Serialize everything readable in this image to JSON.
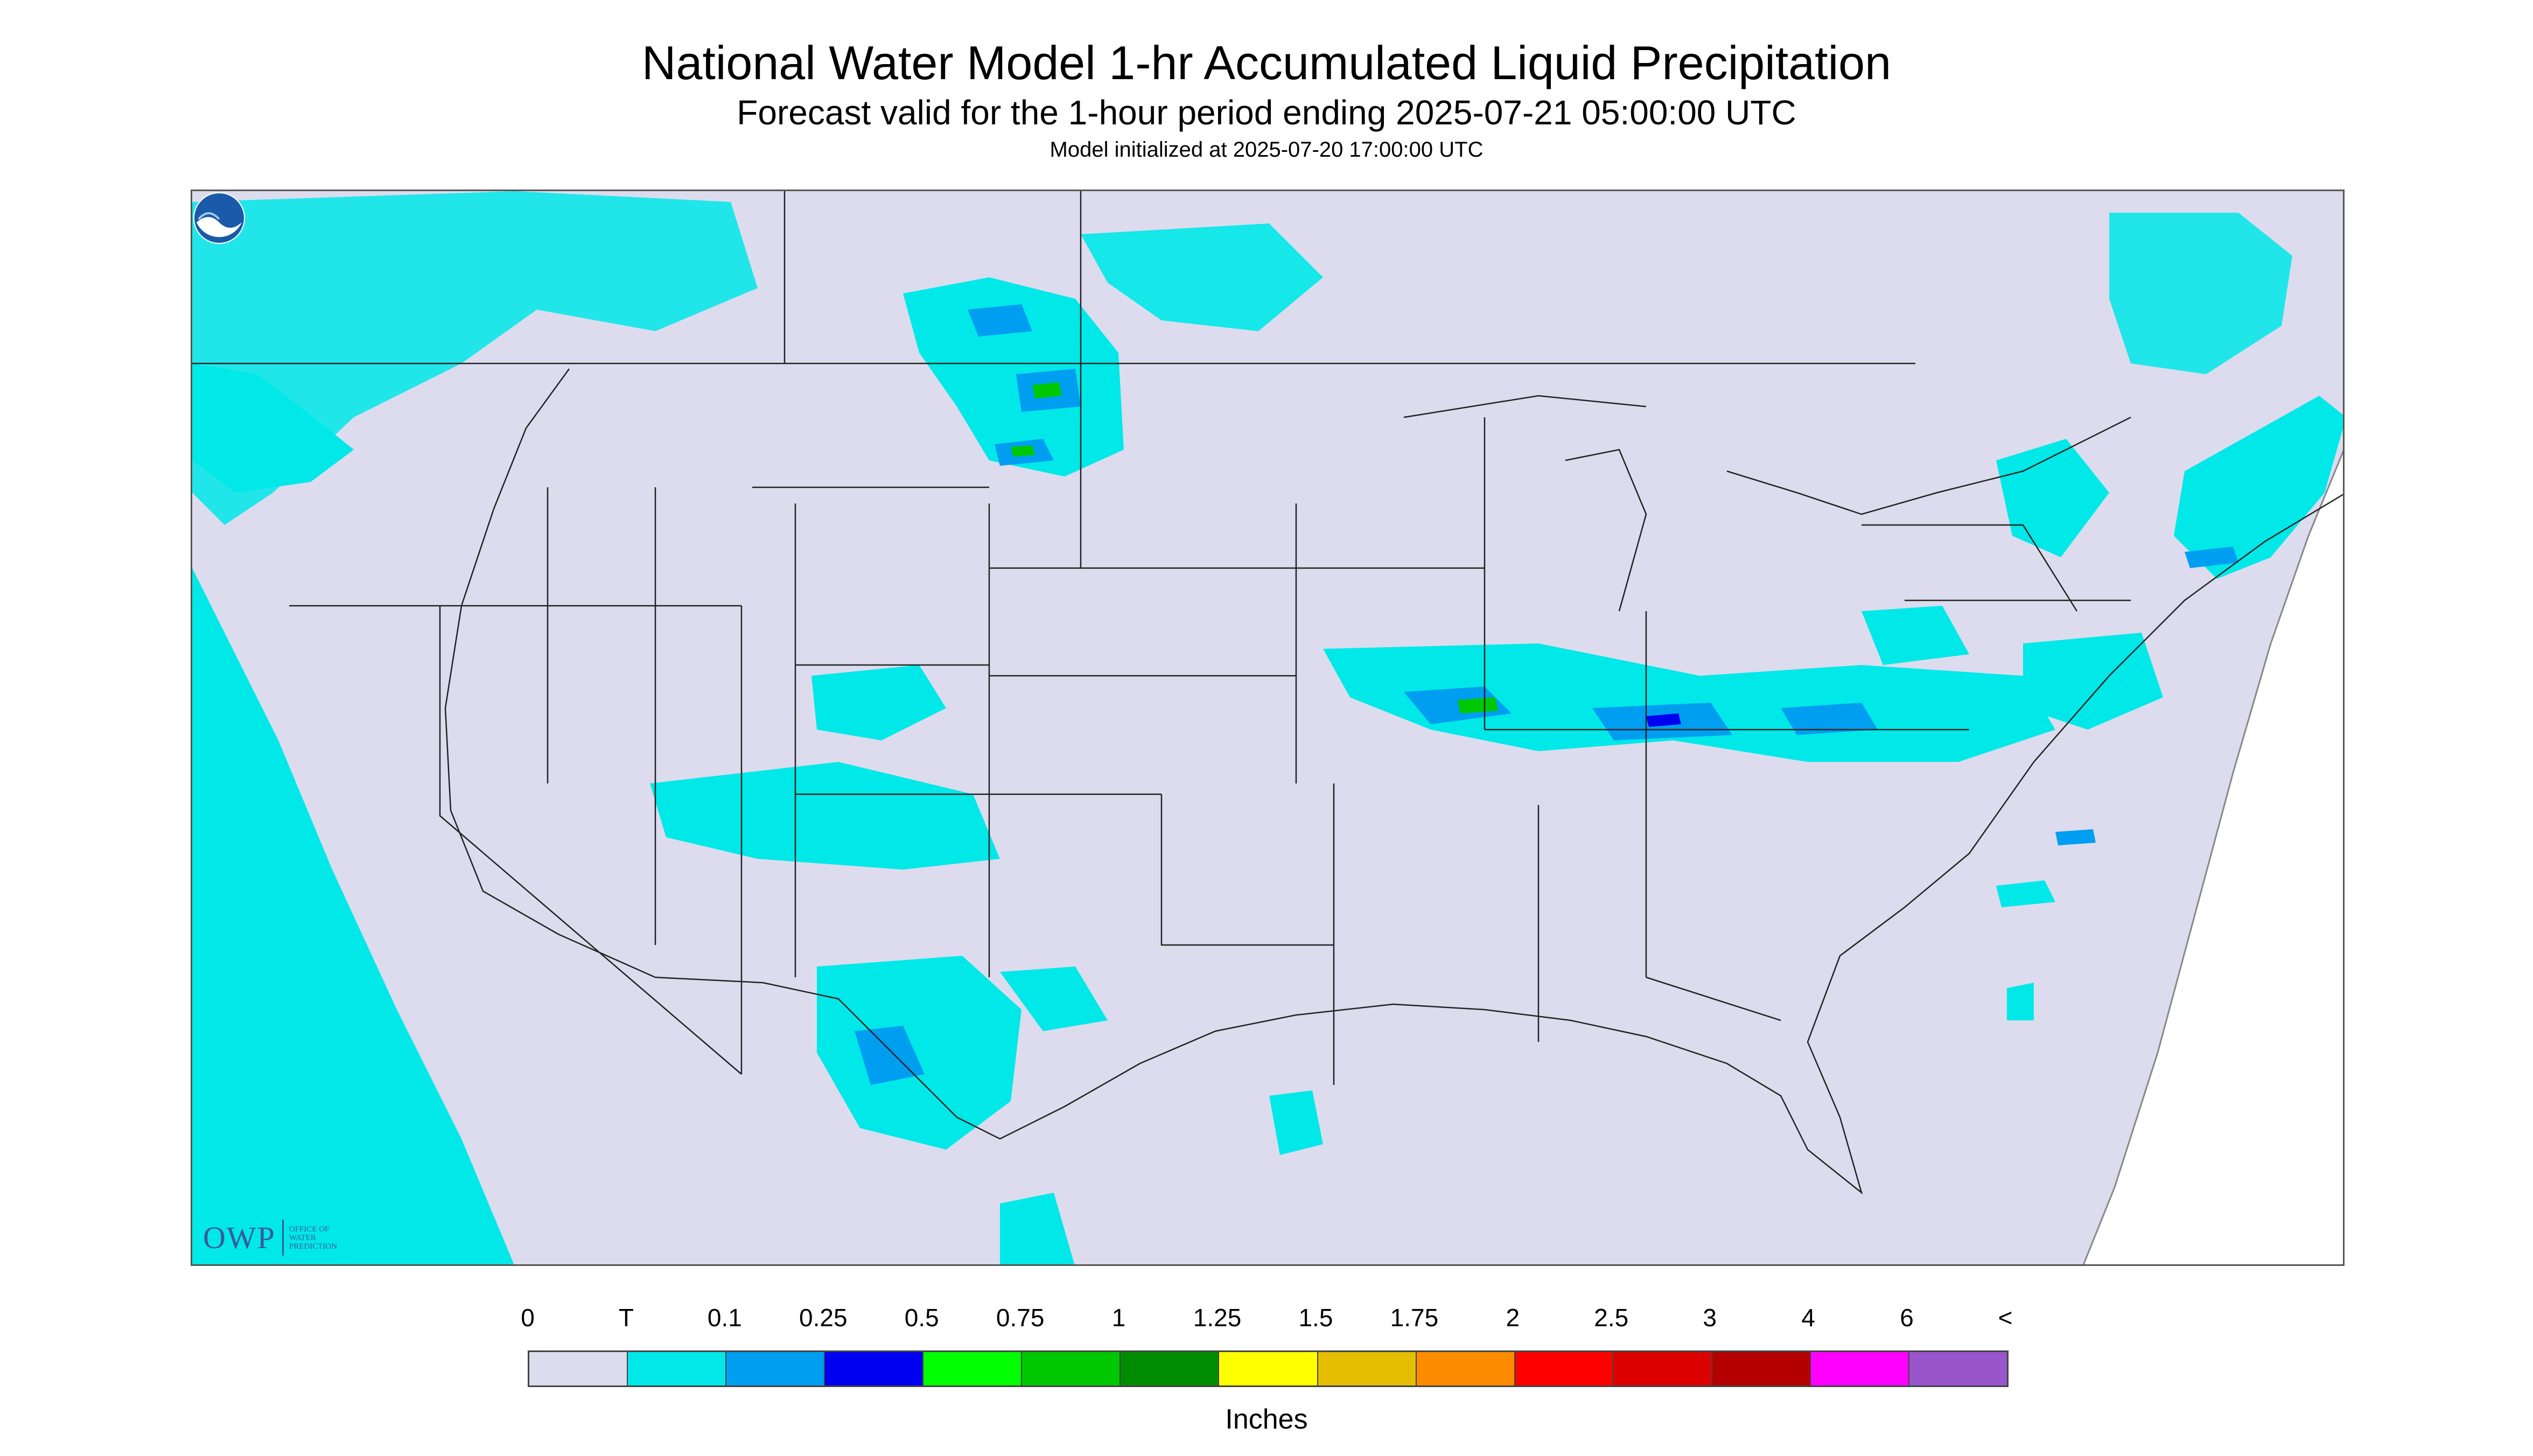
{
  "header": {
    "title": "National Water Model 1-hr Accumulated Liquid Precipitation",
    "subtitle": "Forecast valid for the 1-hour period ending 2025-07-21 05:00:00 UTC",
    "init": "Model initialized at 2025-07-20 17:00:00 UTC"
  },
  "map": {
    "logo_owp": "OWP",
    "logo_owp_text": [
      "Office of",
      "Water",
      "Prediction"
    ],
    "logo_noaa": "NOAA",
    "background_color": "#dcdcee",
    "land_outline_color": "#222222"
  },
  "legend": {
    "labels": [
      "0",
      "T",
      "0.1",
      "0.25",
      "0.5",
      "0.75",
      "1",
      "1.25",
      "1.5",
      "1.75",
      "2",
      "2.5",
      "3",
      "4",
      "6",
      "<"
    ],
    "colors": [
      "#dcdcee",
      "#00e8e8",
      "#009ef0",
      "#0000f0",
      "#00ff00",
      "#00c800",
      "#008c00",
      "#ffff00",
      "#e6be00",
      "#ff8c00",
      "#ff0000",
      "#dc0000",
      "#b40000",
      "#ff00ff",
      "#9955cc"
    ],
    "units": "Inches"
  }
}
